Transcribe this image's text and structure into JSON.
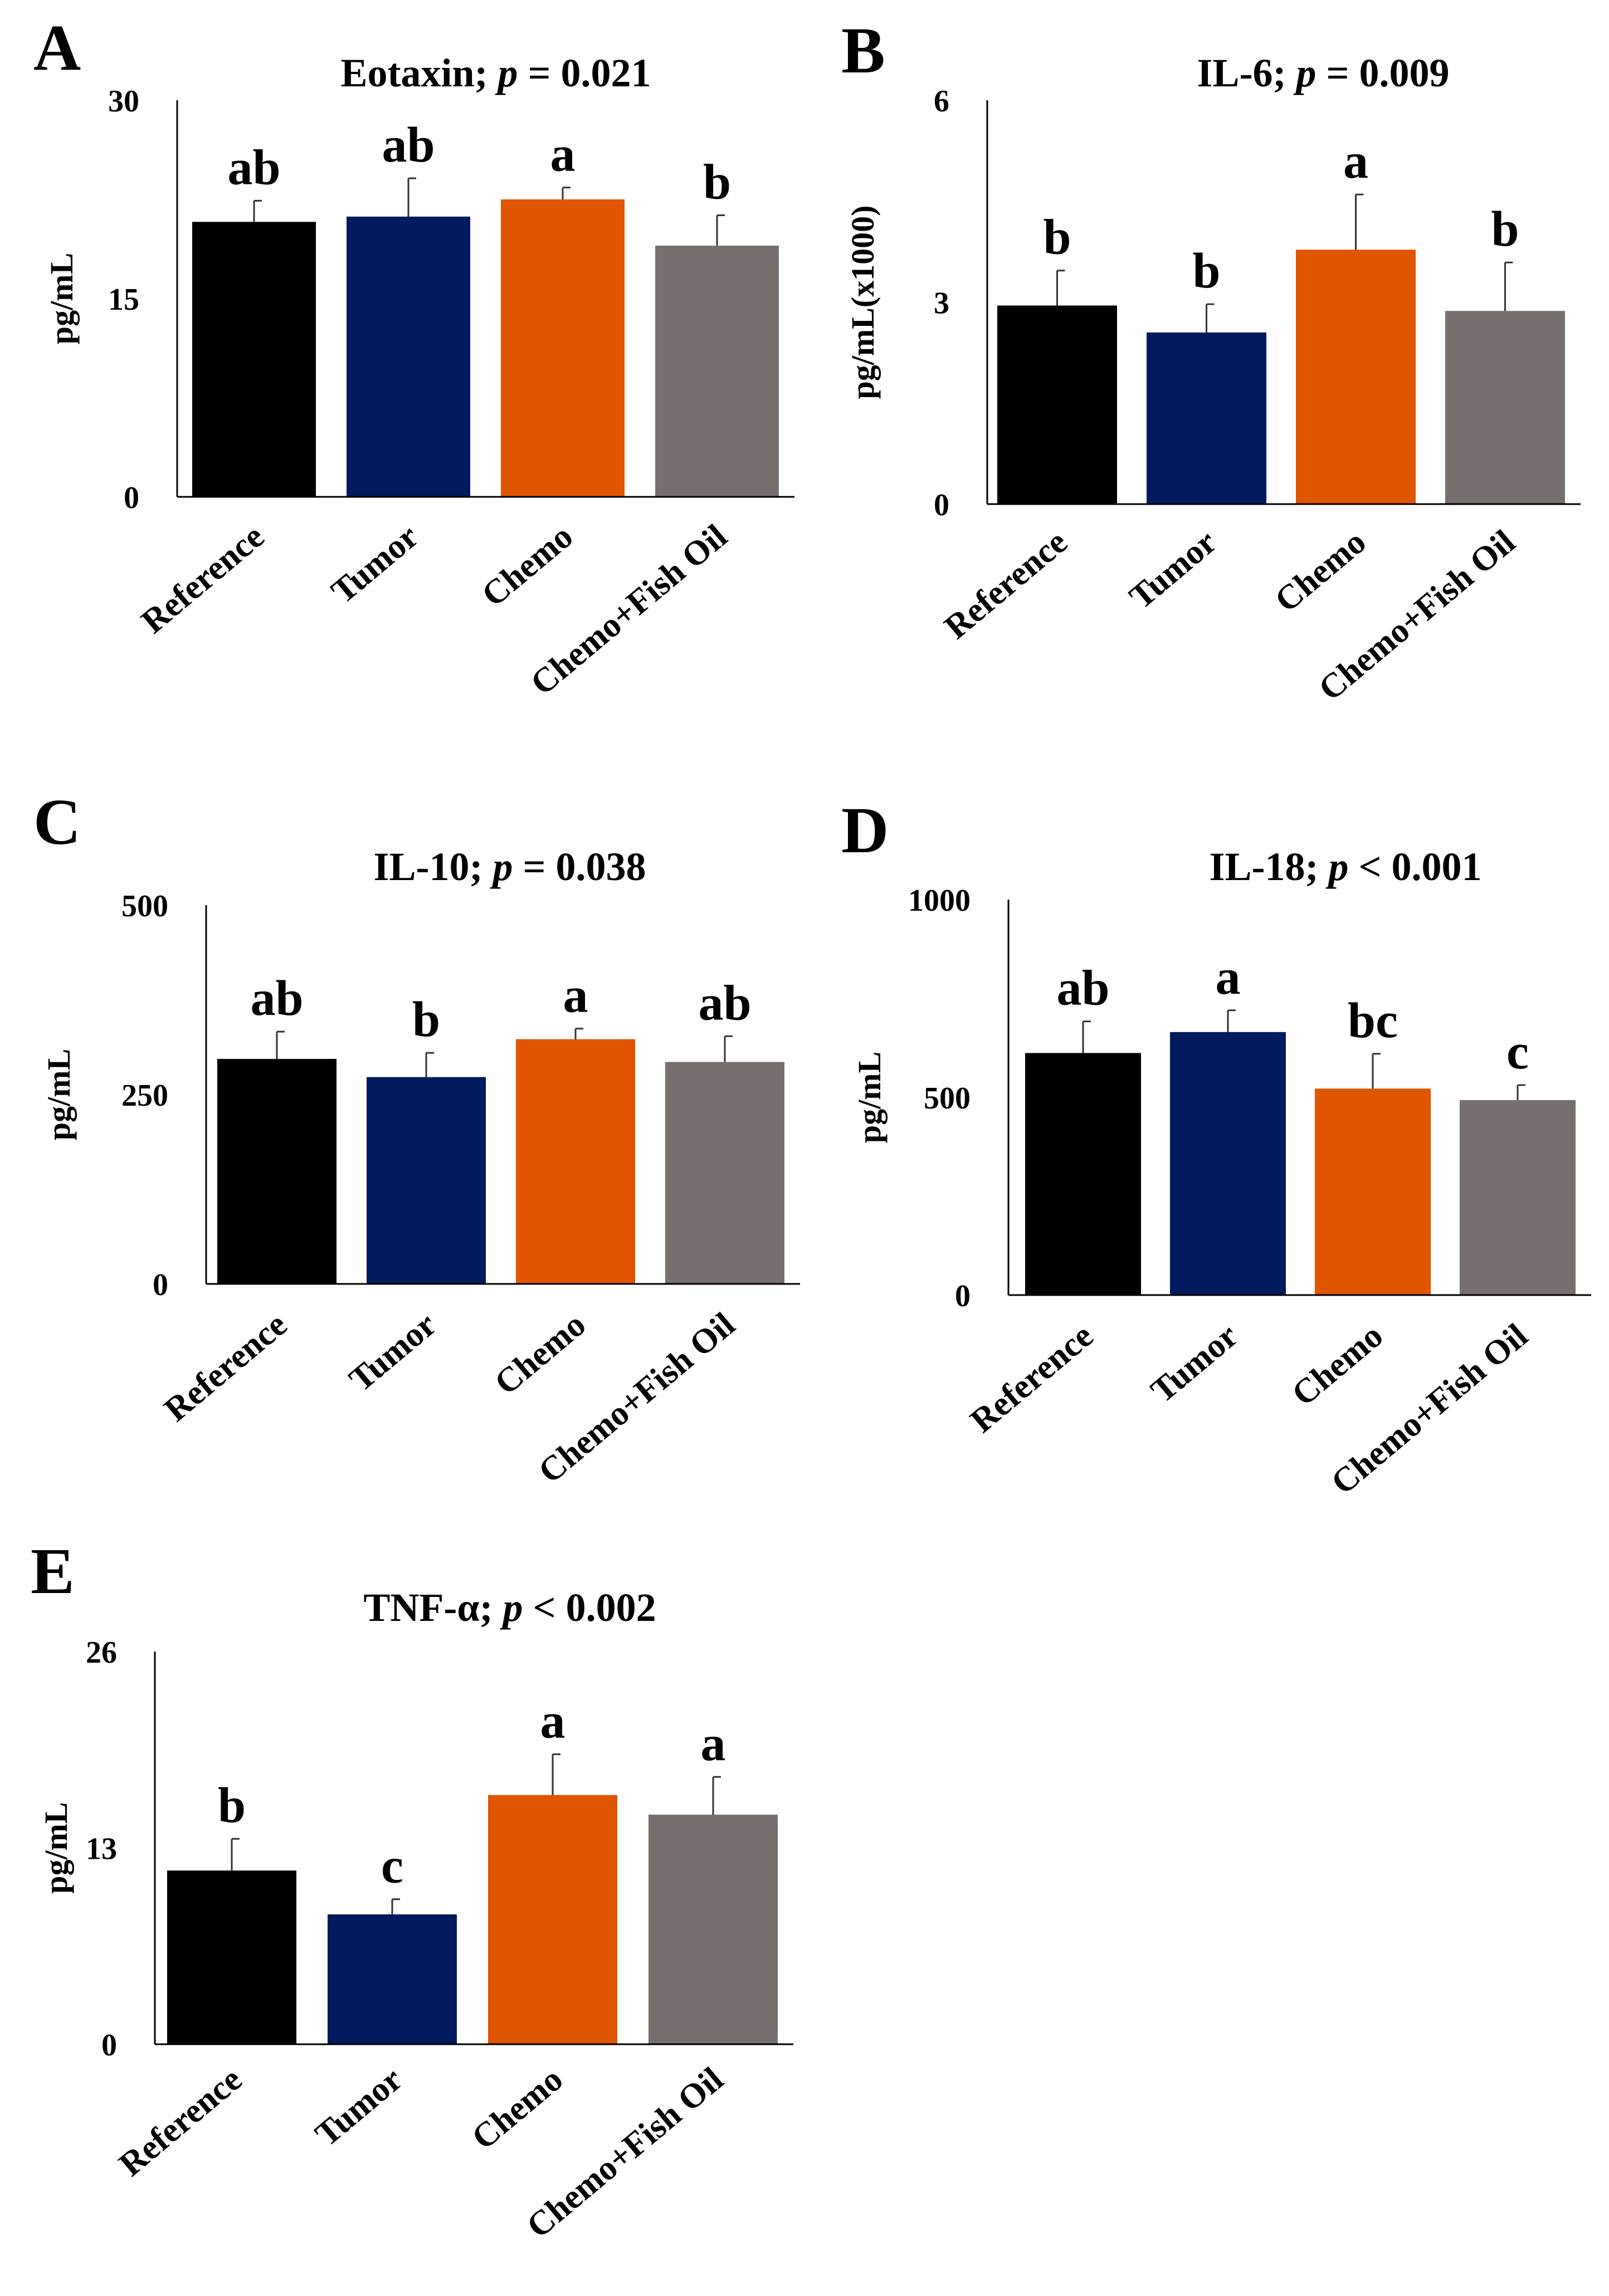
{
  "colors": {
    "Reference": "#000000",
    "Tumor": "#001a5e",
    "Chemo": "#e05500",
    "Chemo+Fish Oil": "#766f6d"
  },
  "chart_data": [
    {
      "panel": "A",
      "type": "bar",
      "title_prefix": "Eotaxin; ",
      "p_text": "p",
      "title_suffix": " = 0.021",
      "ylabel": "pg/mL",
      "ylim": [
        0,
        30
      ],
      "yticks": [
        "0",
        "15",
        "30"
      ],
      "categories": [
        "Reference",
        "Tumor",
        "Chemo",
        "Chemo+Fish Oil"
      ],
      "values": [
        20.8,
        21.2,
        22.5,
        19.0
      ],
      "errors": [
        1.6,
        2.9,
        0.9,
        2.3
      ],
      "labels": [
        "ab",
        "ab",
        "a",
        "b"
      ]
    },
    {
      "panel": "B",
      "type": "bar",
      "title_prefix": "IL-6; ",
      "p_text": "p",
      "title_suffix": " = 0.009",
      "ylabel": "pg/mL(x1000)",
      "ylim": [
        0,
        6
      ],
      "yticks": [
        "0",
        "3",
        "6"
      ],
      "categories": [
        "Reference",
        "Tumor",
        "Chemo",
        "Chemo+Fish Oil"
      ],
      "values": [
        2.95,
        2.55,
        3.78,
        2.87
      ],
      "errors": [
        0.52,
        0.42,
        0.82,
        0.72
      ],
      "labels": [
        "b",
        "b",
        "a",
        "b"
      ]
    },
    {
      "panel": "C",
      "type": "bar",
      "title_prefix": "IL-10; ",
      "p_text": "p",
      "title_suffix": " = 0.038",
      "ylabel": "pg/mL",
      "ylim": [
        0,
        500
      ],
      "yticks": [
        "0",
        "250",
        "500"
      ],
      "categories": [
        "Reference",
        "Tumor",
        "Chemo",
        "Chemo+Fish Oil"
      ],
      "values": [
        297,
        273,
        323,
        293
      ],
      "errors": [
        36,
        32,
        14,
        34
      ],
      "labels": [
        "ab",
        "b",
        "a",
        "ab"
      ]
    },
    {
      "panel": "D",
      "type": "bar",
      "title_prefix": "IL-18; ",
      "p_text": "p",
      "title_suffix": " < 0.001",
      "ylabel": "pg/mL",
      "ylim": [
        0,
        1000
      ],
      "yticks": [
        "0",
        "500",
        "1000"
      ],
      "categories": [
        "Reference",
        "Tumor",
        "Chemo",
        "Chemo+Fish Oil"
      ],
      "values": [
        612,
        665,
        522,
        493
      ],
      "errors": [
        80,
        55,
        88,
        38
      ],
      "labels": [
        "ab",
        "a",
        "bc",
        "c"
      ]
    },
    {
      "panel": "E",
      "type": "bar",
      "title_prefix": "TNF-α; ",
      "p_text": "p",
      "title_suffix": " < 0.002",
      "ylabel": "pg/mL",
      "ylim": [
        0,
        26
      ],
      "yticks": [
        "0",
        "13",
        "26"
      ],
      "categories": [
        "Reference",
        "Tumor",
        "Chemo",
        "Chemo+Fish Oil"
      ],
      "values": [
        11.5,
        8.6,
        16.5,
        15.2
      ],
      "errors": [
        2.1,
        1.0,
        2.7,
        2.5
      ],
      "labels": [
        "b",
        "c",
        "a",
        "a"
      ]
    }
  ]
}
